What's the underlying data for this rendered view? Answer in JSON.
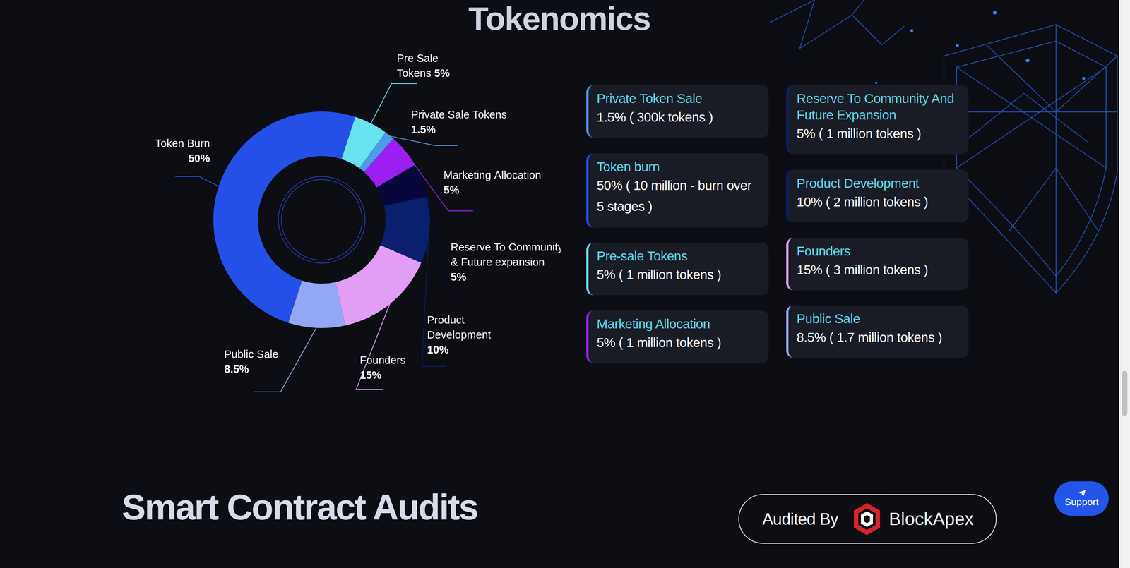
{
  "chart_data": {
    "type": "doughnut",
    "title": "Tokenomics",
    "categories": [
      "Pre Sale Tokens",
      "Private Sale Tokens",
      "Marketing Allocation",
      "Reserve To Community & Future expansion",
      "Product Development",
      "Founders",
      "Public Sale",
      "Token Burn"
    ],
    "values": [
      5,
      1.5,
      5,
      5,
      10,
      15,
      8.5,
      50
    ],
    "value_labels": [
      "5%",
      "1.5%",
      "5%",
      "5%",
      "10%",
      "15%",
      "8.5%",
      "50%"
    ],
    "colors": [
      "#67e4ef",
      "#4c9be8",
      "#9b1ff0",
      "#07073a",
      "#0a1f6e",
      "#e29ef5",
      "#93a8f5",
      "#2450e8"
    ],
    "data_labels": true
  },
  "cards": {
    "columns": [
      [
        {
          "title": "Private Token Sale",
          "text": "1.5% ( 300k tokens )"
        },
        {
          "title": "Token burn",
          "text": "50% ( 10 million - burn over 5 stages )"
        },
        {
          "title": "Pre-sale Tokens",
          "text": "5% ( 1 million tokens )"
        },
        {
          "title": "Marketing Allocation",
          "text": "5% ( 1 million tokens )"
        }
      ],
      [
        {
          "title": "Reserve To Community And Future Expansion",
          "text": "5% ( 1 million tokens )"
        },
        {
          "title": "Product Development",
          "text": "10% ( 2 million tokens )"
        },
        {
          "title": "Founders",
          "text": "15% ( 3 million tokens )"
        },
        {
          "title": "Public Sale",
          "text": "8.5% ( 1.7 million tokens )"
        }
      ]
    ]
  },
  "audits": {
    "title": "Smart Contract Audits",
    "label": "Audited By",
    "auditor": "BlockApex"
  },
  "support": "Support"
}
